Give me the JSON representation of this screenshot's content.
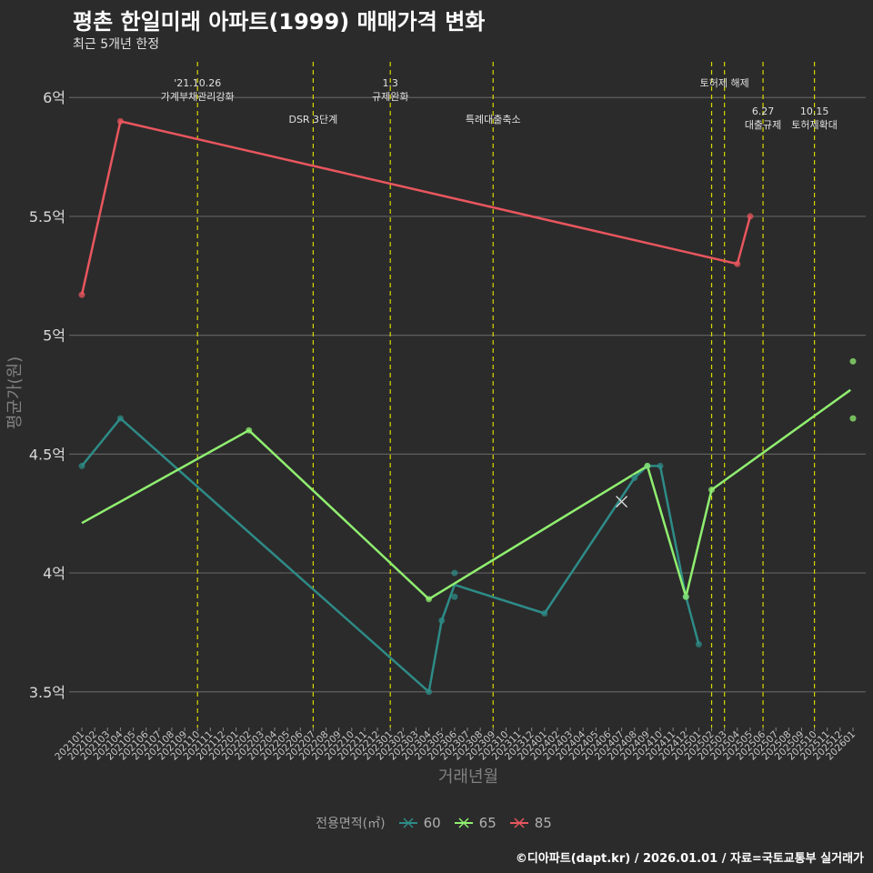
{
  "header": {
    "title": "평촌 한일미래 아파트(1999) 매매가격 변화",
    "subtitle": "최근 5개년 한정"
  },
  "caption": "©디아파트(dapt.kr) / 2026.01.01 / 자료=국토교통부 실거래가",
  "legend": {
    "title": "전용면적(㎡)",
    "items": [
      {
        "label": "60",
        "color": "#2e8b87"
      },
      {
        "label": "65",
        "color": "#90ee70"
      },
      {
        "label": "85",
        "color": "#e8565e"
      }
    ]
  },
  "chart_data": {
    "type": "line",
    "title": "평촌 한일미래 아파트(1999) 매매가격 변화",
    "subtitle": "최근 5개년 한정",
    "xlabel": "거래년월",
    "ylabel": "평균가(원)",
    "ylim": [
      3.35,
      6.15
    ],
    "yticks": [
      3.5,
      4.0,
      4.5,
      5.0,
      5.5,
      6.0
    ],
    "ytick_labels": [
      "3.5억",
      "4억",
      "4.5억",
      "5억",
      "5.5억",
      "6억"
    ],
    "categories": [
      "202101",
      "202102",
      "202103",
      "202104",
      "202105",
      "202106",
      "202107",
      "202108",
      "202109",
      "202110",
      "202111",
      "202112",
      "202201",
      "202202",
      "202203",
      "202204",
      "202205",
      "202206",
      "202207",
      "202208",
      "202209",
      "202210",
      "202211",
      "202212",
      "202301",
      "202302",
      "202303",
      "202304",
      "202305",
      "202306",
      "202307",
      "202308",
      "202309",
      "202310",
      "202311",
      "202312",
      "202401",
      "202402",
      "202403",
      "202404",
      "202405",
      "202406",
      "202407",
      "202408",
      "202409",
      "202410",
      "202411",
      "202412",
      "202501",
      "202502",
      "202503",
      "202504",
      "202505",
      "202506",
      "202507",
      "202508",
      "202509",
      "202510",
      "202511",
      "202512",
      "202601"
    ],
    "series": [
      {
        "name": "60",
        "color": "#2e8b87",
        "line": [
          [
            0,
            4.45
          ],
          [
            3,
            4.65
          ],
          [
            27,
            3.5
          ],
          [
            28,
            3.8
          ],
          [
            29,
            3.95
          ],
          [
            36,
            3.83
          ],
          [
            43,
            4.4
          ],
          [
            44,
            4.45
          ],
          [
            45,
            4.45
          ],
          [
            47,
            3.9
          ],
          [
            48,
            3.7
          ]
        ],
        "points": [
          [
            0,
            4.45
          ],
          [
            3,
            4.65
          ],
          [
            27,
            3.5
          ],
          [
            28,
            3.8
          ],
          [
            29,
            4.0
          ],
          [
            29,
            3.9
          ],
          [
            36,
            3.83
          ],
          [
            43,
            4.4
          ],
          [
            44,
            4.45
          ],
          [
            45,
            4.45
          ],
          [
            47,
            3.9
          ],
          [
            48,
            3.7
          ]
        ]
      },
      {
        "name": "65",
        "color": "#90ee70",
        "line": [
          [
            0,
            4.21
          ],
          [
            13,
            4.6
          ],
          [
            27,
            3.89
          ],
          [
            44,
            4.45
          ],
          [
            47,
            3.9
          ],
          [
            49,
            4.35
          ],
          [
            59.8,
            4.77
          ]
        ],
        "points": [
          [
            13,
            4.6
          ],
          [
            27,
            3.89
          ],
          [
            44,
            4.45
          ],
          [
            47,
            3.9
          ],
          [
            49,
            4.35
          ],
          [
            60,
            4.89
          ],
          [
            60,
            4.65
          ]
        ]
      },
      {
        "name": "85",
        "color": "#e8565e",
        "line": [
          [
            0,
            5.17
          ],
          [
            3,
            5.9
          ],
          [
            51,
            5.3
          ],
          [
            52,
            5.5
          ]
        ],
        "points": [
          [
            0,
            5.17
          ],
          [
            3,
            5.9
          ],
          [
            51,
            5.3
          ],
          [
            52,
            5.5
          ]
        ]
      }
    ],
    "cross_marker": {
      "x": 42,
      "y": 4.3
    },
    "events": [
      {
        "x": 9.0,
        "lines": [
          "'21.10.26",
          "가계부채관리강화"
        ],
        "level": 1
      },
      {
        "x": 18.0,
        "lines": [
          "DSR 3단계"
        ],
        "level": 2
      },
      {
        "x": 24.0,
        "lines": [
          "1.3",
          "규제완화"
        ],
        "level": 1
      },
      {
        "x": 32.0,
        "lines": [
          "특례대출축소"
        ],
        "level": 2
      },
      {
        "x": 49.0,
        "lines": [],
        "level": 0
      },
      {
        "x": 50.0,
        "lines": [
          "토허제 해제"
        ],
        "level": 1
      },
      {
        "x": 53.0,
        "lines": [
          "6.27",
          "대출규제"
        ],
        "level": 3
      },
      {
        "x": 57.0,
        "lines": [
          "10.15",
          "토허제확대"
        ],
        "level": 3
      }
    ]
  }
}
